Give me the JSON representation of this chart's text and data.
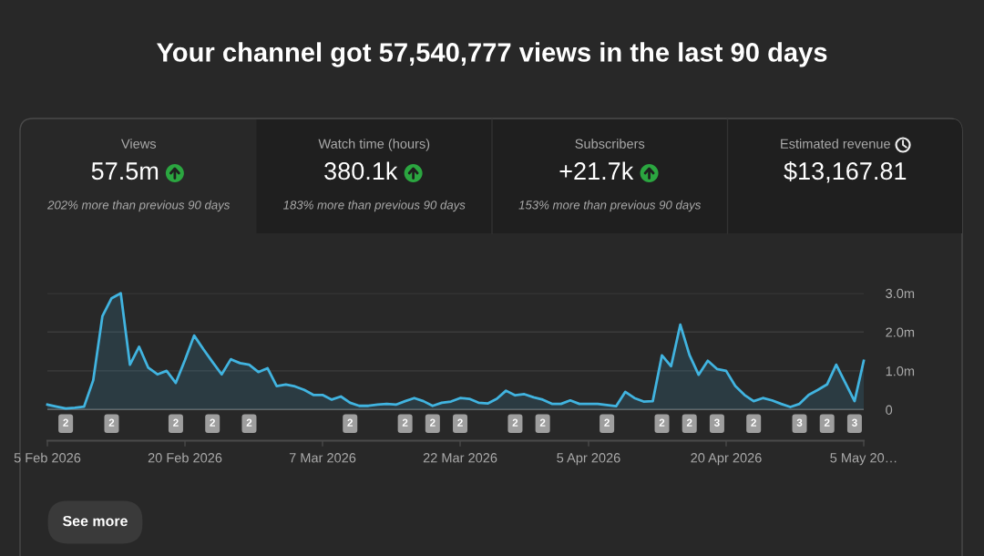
{
  "chart_data": [
    {
      "type": "other",
      "title": "Your channel got 57,540,777 views in the last 90 days"
    },
    {
      "type": "other",
      "title": "Views",
      "annotations": [
        "57.5m",
        "202% more than previous 90 days"
      ]
    },
    {
      "type": "other",
      "title": "Watch time (hours)",
      "annotations": [
        "380.1k",
        "183% more than previous 90 days"
      ]
    },
    {
      "type": "other",
      "title": "Subscribers",
      "annotations": [
        "+21.7k",
        "153% more than previous 90 days"
      ]
    },
    {
      "type": "other",
      "title": "Estimated revenue",
      "annotations": [
        "$13,167.81"
      ]
    },
    {
      "type": "area",
      "color": "#41b4e0",
      "grid": "y",
      "x": [
        "2026-02-05",
        "2026-02-06",
        "2026-02-07",
        "2026-02-08",
        "2026-02-09",
        "2026-02-10",
        "2026-02-11",
        "2026-02-12",
        "2026-02-13",
        "2026-02-14",
        "2026-02-15",
        "2026-02-16",
        "2026-02-17",
        "2026-02-18",
        "2026-02-19",
        "2026-02-20",
        "2026-02-21",
        "2026-02-22",
        "2026-02-23",
        "2026-02-24",
        "2026-02-25",
        "2026-02-26",
        "2026-02-27",
        "2026-02-28",
        "2026-03-01",
        "2026-03-02",
        "2026-03-03",
        "2026-03-04",
        "2026-03-05",
        "2026-03-06",
        "2026-03-07",
        "2026-03-08",
        "2026-03-09",
        "2026-03-10",
        "2026-03-11",
        "2026-03-12",
        "2026-03-13",
        "2026-03-14",
        "2026-03-15",
        "2026-03-16",
        "2026-03-17",
        "2026-03-18",
        "2026-03-19",
        "2026-03-20",
        "2026-03-21",
        "2026-03-22",
        "2026-03-23",
        "2026-03-24",
        "2026-03-25",
        "2026-03-26",
        "2026-03-27",
        "2026-03-28",
        "2026-03-29",
        "2026-03-30",
        "2026-03-31",
        "2026-04-01",
        "2026-04-02",
        "2026-04-03",
        "2026-04-04",
        "2026-04-05",
        "2026-04-06",
        "2026-04-07",
        "2026-04-08",
        "2026-04-09",
        "2026-04-10",
        "2026-04-11",
        "2026-04-12",
        "2026-04-13",
        "2026-04-14",
        "2026-04-15",
        "2026-04-16",
        "2026-04-17",
        "2026-04-18",
        "2026-04-19",
        "2026-04-20",
        "2026-04-21",
        "2026-04-22",
        "2026-04-23",
        "2026-04-24",
        "2026-04-25",
        "2026-04-26",
        "2026-04-27",
        "2026-04-28",
        "2026-04-29",
        "2026-04-30",
        "2026-05-01",
        "2026-05-02",
        "2026-05-03",
        "2026-05-04",
        "2026-05-05"
      ],
      "values": [
        0.13,
        0.08,
        0.03,
        0.05,
        0.08,
        0.76,
        2.41,
        2.87,
        3.0,
        1.16,
        1.62,
        1.08,
        0.91,
        1.0,
        0.69,
        1.28,
        1.91,
        1.56,
        1.23,
        0.91,
        1.3,
        1.2,
        1.16,
        0.97,
        1.07,
        0.61,
        0.65,
        0.6,
        0.51,
        0.38,
        0.38,
        0.26,
        0.34,
        0.18,
        0.1,
        0.1,
        0.13,
        0.15,
        0.13,
        0.22,
        0.3,
        0.22,
        0.1,
        0.18,
        0.21,
        0.3,
        0.28,
        0.18,
        0.16,
        0.28,
        0.49,
        0.37,
        0.4,
        0.32,
        0.26,
        0.15,
        0.15,
        0.24,
        0.15,
        0.15,
        0.15,
        0.12,
        0.09,
        0.46,
        0.3,
        0.21,
        0.22,
        1.4,
        1.12,
        2.19,
        1.41,
        0.9,
        1.26,
        1.05,
        1.0,
        0.61,
        0.38,
        0.22,
        0.3,
        0.24,
        0.15,
        0.07,
        0.15,
        0.38,
        0.51,
        0.65,
        1.16,
        0.69,
        0.22,
        1.26
      ],
      "xlim": [
        "2026-02-05",
        "2026-05-05"
      ],
      "xticks": [
        {
          "value": "2026-02-05",
          "label": "5 Feb 2026"
        },
        {
          "value": "2026-02-20",
          "label": "20 Feb 2026"
        },
        {
          "value": "2026-03-07",
          "label": "7 Mar 2026"
        },
        {
          "value": "2026-03-22",
          "label": "22 Mar 2026"
        },
        {
          "value": "2026-04-05",
          "label": "5 Apr 2026"
        },
        {
          "value": "2026-04-20",
          "label": "20 Apr 2026"
        },
        {
          "value": "2026-05-05",
          "label": "5 May 20…"
        }
      ],
      "x2lim": [
        "2026-02-05",
        "2026-05-05"
      ],
      "x2ticks": [
        {
          "value": "2026-02-07",
          "label": "2"
        },
        {
          "value": "2026-02-12",
          "label": "2"
        },
        {
          "value": "2026-02-19",
          "label": "2"
        },
        {
          "value": "2026-02-23",
          "label": "2"
        },
        {
          "value": "2026-02-27",
          "label": "2"
        },
        {
          "value": "2026-03-10",
          "label": "2"
        },
        {
          "value": "2026-03-16",
          "label": "2"
        },
        {
          "value": "2026-03-19",
          "label": "2"
        },
        {
          "value": "2026-03-22",
          "label": "2"
        },
        {
          "value": "2026-03-28",
          "label": "2"
        },
        {
          "value": "2026-03-31",
          "label": "2"
        },
        {
          "value": "2026-04-07",
          "label": "2"
        },
        {
          "value": "2026-04-13",
          "label": "2"
        },
        {
          "value": "2026-04-16",
          "label": "2"
        },
        {
          "value": "2026-04-19",
          "label": "3"
        },
        {
          "value": "2026-04-23",
          "label": "2"
        },
        {
          "value": "2026-04-28",
          "label": "3"
        },
        {
          "value": "2026-05-01",
          "label": "2"
        },
        {
          "value": "2026-05-04",
          "label": "3"
        }
      ],
      "ylim": [
        0,
        3
      ],
      "yticks": [
        0,
        {
          "value": 1,
          "label": "1.0m"
        },
        {
          "value": 2,
          "label": "2.0m"
        },
        {
          "value": 3,
          "label": "3.0m"
        }
      ],
      "annotations": [
        "See more"
      ]
    }
  ]
}
